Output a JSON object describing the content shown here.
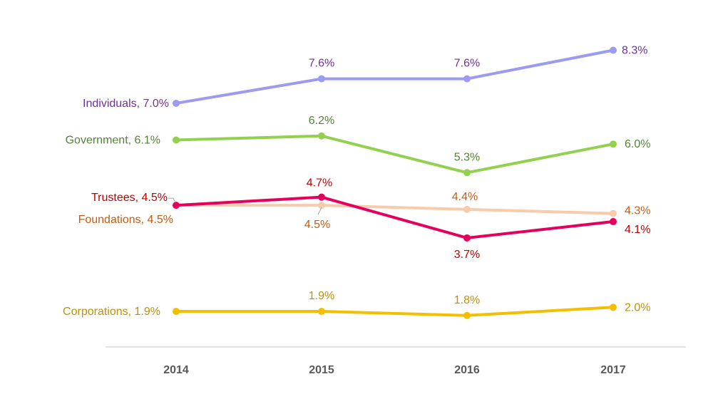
{
  "chart_data": {
    "type": "line",
    "categories": [
      "2014",
      "2015",
      "2016",
      "2017"
    ],
    "series": [
      {
        "name": "Individuals",
        "values": [
          7.0,
          7.6,
          7.6,
          8.3
        ],
        "line_color": "#9b9bef",
        "text_color": "#7030a0",
        "labels": [
          "Individuals, 7.0%",
          "7.6%",
          "7.6%",
          "8.3%"
        ]
      },
      {
        "name": "Government",
        "values": [
          6.1,
          6.2,
          5.3,
          6.0
        ],
        "line_color": "#92d050",
        "text_color": "#548235",
        "labels": [
          "Government, 6.1%",
          "6.2%",
          "5.3%",
          "6.0%"
        ]
      },
      {
        "name": "Trustees",
        "values": [
          4.5,
          4.7,
          3.7,
          4.1
        ],
        "line_color": "#e4005c",
        "text_color": "#c00000",
        "labels": [
          "Trustees, 4.5%",
          "4.7%",
          "3.7%",
          "4.1%"
        ]
      },
      {
        "name": "Foundations",
        "values": [
          4.5,
          4.5,
          4.4,
          4.3
        ],
        "line_color": "#f8cbad",
        "text_color": "#c55a11",
        "labels": [
          "Foundations, 4.5%",
          "4.5%",
          "4.4%",
          "4.3%"
        ]
      },
      {
        "name": "Corporations",
        "values": [
          1.9,
          1.9,
          1.8,
          2.0
        ],
        "line_color": "#f2c000",
        "text_color": "#bf9000",
        "labels": [
          "Corporations, 1.9%",
          "1.9%",
          "1.8%",
          "2.0%"
        ]
      }
    ],
    "title": "",
    "xlabel": "",
    "ylabel": "",
    "grid": false,
    "legend": "none (series names in data labels)",
    "axis_color": "#d9d9d9"
  }
}
